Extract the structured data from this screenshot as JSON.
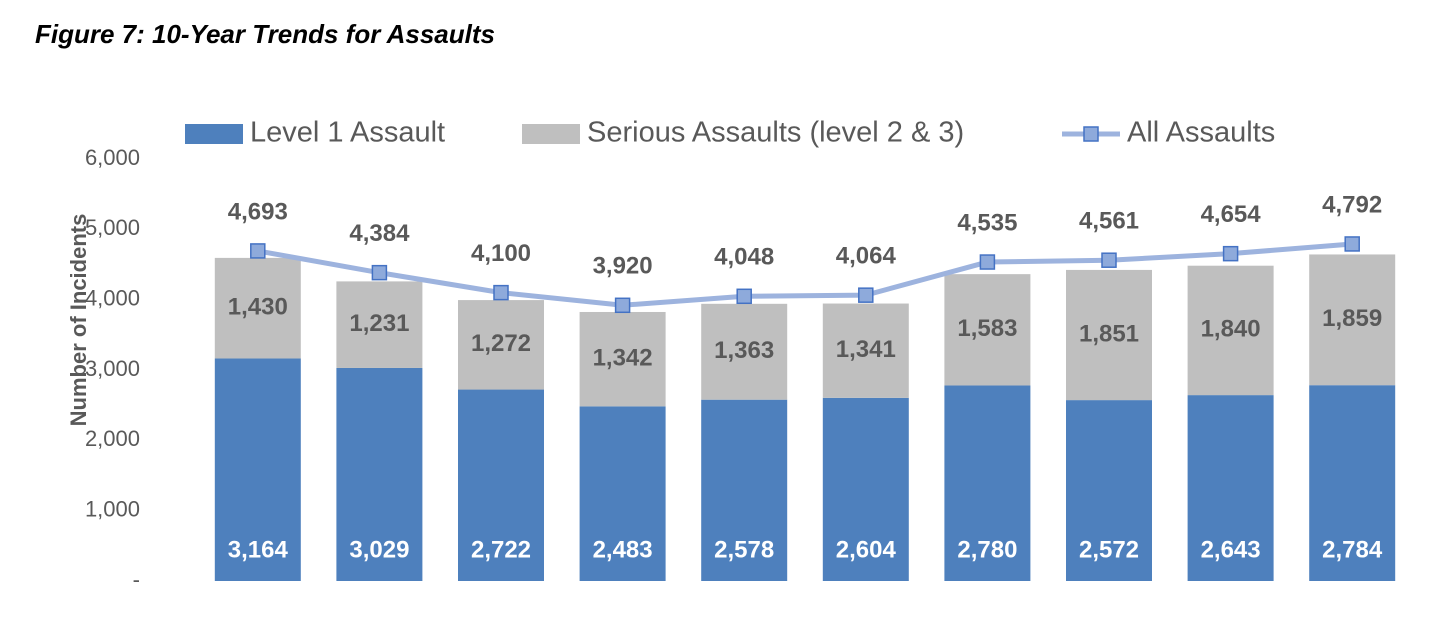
{
  "chart_data": {
    "type": "stacked-bar-line",
    "title": "Figure 7: 10-Year Trends for Assaults",
    "y_label": "Number of Incidents",
    "categories": [
      null,
      null,
      null,
      null,
      null,
      null,
      null,
      null,
      null,
      null
    ],
    "series": [
      {
        "name": "Level 1 Assault",
        "type": "bar",
        "color": "#4e80bd",
        "values": [
          3164,
          3029,
          2722,
          2483,
          2578,
          2604,
          2780,
          2572,
          2643,
          2784
        ],
        "value_labels": [
          "3,164",
          "3,029",
          "2,722",
          "2,483",
          "2,578",
          "2,604",
          "2,780",
          "2,572",
          "2,643",
          "2,784"
        ]
      },
      {
        "name": "Serious Assaults (level 2 & 3)",
        "type": "bar",
        "color": "#bfbfbf",
        "values": [
          1430,
          1231,
          1272,
          1342,
          1363,
          1341,
          1583,
          1851,
          1840,
          1859
        ],
        "value_labels": [
          "1,430",
          "1,231",
          "1,272",
          "1,342",
          "1,363",
          "1,341",
          "1,583",
          "1,851",
          "1,840",
          "1,859"
        ]
      },
      {
        "name": "All Assaults",
        "type": "line",
        "color": "#9db3de",
        "marker_color": "#8eaadb",
        "marker_edge": "#4472c4",
        "values": [
          4693,
          4384,
          4100,
          3920,
          4048,
          4064,
          4535,
          4561,
          4654,
          4792
        ],
        "value_labels": [
          "4,693",
          "4,384",
          "4,100",
          "3,920",
          "4,048",
          "4,064",
          "4,535",
          "4,561",
          "4,654",
          "4,792"
        ]
      }
    ],
    "ylim": [
      0,
      6000
    ],
    "yticks": [
      {
        "value": 0,
        "label": "-"
      },
      {
        "value": 1000,
        "label": "1,000"
      },
      {
        "value": 2000,
        "label": "2,000"
      },
      {
        "value": 3000,
        "label": "3,000"
      },
      {
        "value": 4000,
        "label": "4,000"
      },
      {
        "value": 5000,
        "label": "5,000"
      },
      {
        "value": 6000,
        "label": "6,000"
      }
    ],
    "grid": false
  }
}
